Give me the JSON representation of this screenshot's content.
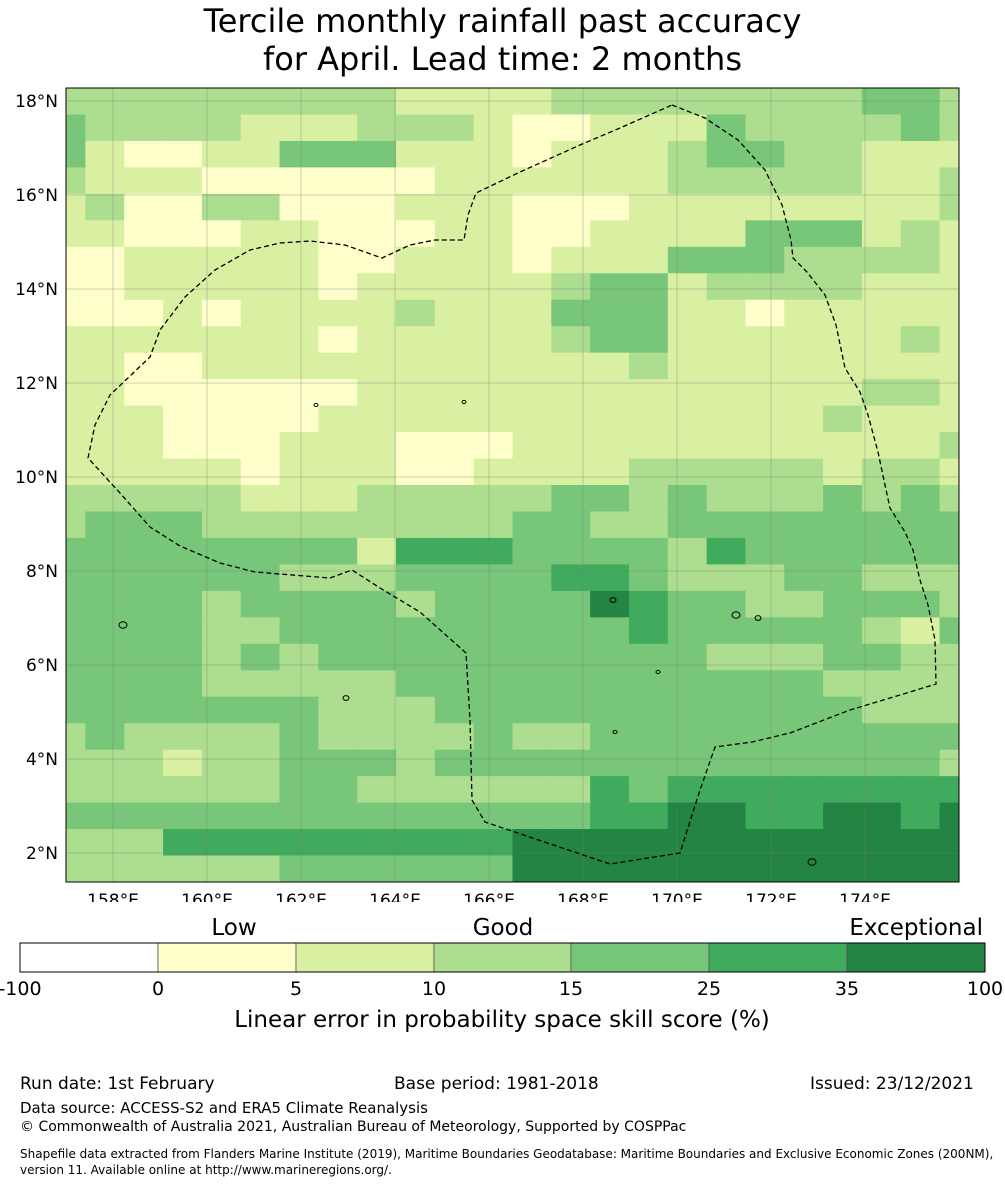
{
  "title_line1": "Tercile monthly rainfall past accuracy",
  "title_line2": "for April. Lead time: 2 months",
  "map": {
    "lat_ticks": [
      "18°N",
      "16°N",
      "14°N",
      "12°N",
      "10°N",
      "8°N",
      "6°N",
      "4°N",
      "2°N"
    ],
    "lon_ticks": [
      "158°E",
      "160°E",
      "162°E",
      "164°E",
      "166°E",
      "168°E",
      "170°E",
      "172°E",
      "174°E"
    ],
    "grid_rows": [
      "222222222111122222222332",
      "322221112221001113222232",
      "310011333111011123322111",
      "211100000011111122222112",
      "120022000111000111111112",
      "110001100011001111333121",
      "001111100111011133322221",
      "001111101111123312222111",
      "000101111211133311011111",
      "111111101111123311111121",
      "110011111111111211111111",
      "110000001111111111111221",
      "111000011111111111112111",
      "111000111000111111111112",
      "111110111001111222221221",
      "222221112222233232223232",
      "233322222222332233333333",
      "333333331444333324333333",
      "333333222333344322233222",
      "333323333233335433223332",
      "333322333333333433333213",
      "333323233333333332223322",
      "333322222333333333332222",
      "333333322233333333333222",
      "232222322223223333333333",
      "222122333233333333333332",
      "222222332222224344444444",
      "333333333333334455445545",
      "222444444444555555555555",
      "222222333333555555555555"
    ],
    "colors": [
      "#ffffff",
      "#ffffcc",
      "#d9f0a3",
      "#addd8e",
      "#78c679",
      "#41ab5d",
      "#238443"
    ]
  },
  "colorbar": {
    "group_labels": [
      "Low",
      "Good",
      "Exceptional"
    ],
    "tick_labels": [
      "-100",
      "0",
      "5",
      "10",
      "15",
      "25",
      "35",
      "100"
    ],
    "label": "Linear error in probability space skill score (%)"
  },
  "footer": {
    "run_date": "Run date: 1st February",
    "base_period": "Base period: 1981-2018",
    "issued": "Issued: 23/12/2021",
    "data_source": "Data source: ACCESS-S2 and ERA5 Climate Reanalysis",
    "copyright": "© Commonwealth of Australia 2021, Australian Bureau of Meteorology, Supported by COSPPac",
    "shapefile_line1": "Shapefile data extracted from Flanders Marine Institute (2019), Maritime Boundaries Geodatabase: Maritime Boundaries and Exclusive Economic Zones (200NM),",
    "shapefile_line2": "version 11. Available online at http://www.marineregions.org/."
  }
}
